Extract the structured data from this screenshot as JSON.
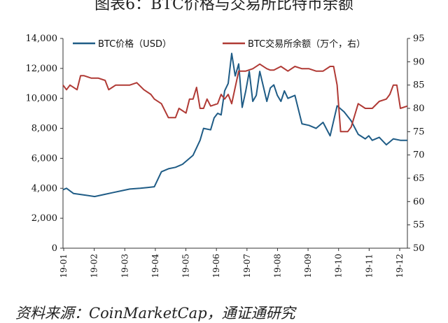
{
  "title": "图表6：BTC价格与交易所比特币余额",
  "source": "资料来源：CoinMarketCap，通证通研究",
  "chart_data": {
    "type": "line",
    "title": "图表6：BTC价格与交易所比特币余额",
    "x_tick_labels": [
      "19-01",
      "19-02",
      "19-03",
      "19-04",
      "19-05",
      "19-06",
      "19-07",
      "19-08",
      "19-09",
      "19-10",
      "19-11",
      "19-12"
    ],
    "x_range": [
      2019.0,
      2019.98
    ],
    "y_left": {
      "range": [
        0,
        14000
      ],
      "tick_labels": [
        "0",
        "2,000",
        "4,000",
        "6,000",
        "8,000",
        "10,000",
        "12,000",
        "14,000"
      ]
    },
    "y_right": {
      "range": [
        50,
        95
      ],
      "tick_labels": [
        "50",
        "55",
        "60",
        "65",
        "70",
        "75",
        "80",
        "85",
        "90",
        "95"
      ]
    },
    "grid": false,
    "legend_position": "top",
    "series": [
      {
        "name": "BTC价格（USD）",
        "axis": "left",
        "color": "#1f5c86",
        "x": [
          2019.0,
          2019.01,
          2019.03,
          2019.06,
          2019.09,
          2019.12,
          2019.14,
          2019.17,
          2019.19,
          2019.22,
          2019.24,
          2019.26,
          2019.28,
          2019.3,
          2019.32,
          2019.34,
          2019.35,
          2019.37,
          2019.39,
          2019.4,
          2019.42,
          2019.43,
          2019.44,
          2019.45,
          2019.46,
          2019.47,
          2019.48,
          2019.49,
          2019.5,
          2019.51,
          2019.52,
          2019.53,
          2019.54,
          2019.55,
          2019.56,
          2019.57,
          2019.58,
          2019.59,
          2019.6,
          2019.61,
          2019.62,
          2019.63,
          2019.64,
          2019.66,
          2019.68,
          2019.7,
          2019.72,
          2019.74,
          2019.76,
          2019.78,
          2019.8,
          2019.82,
          2019.84,
          2019.86,
          2019.87,
          2019.88,
          2019.9,
          2019.92,
          2019.94,
          2019.96,
          2019.98
        ],
        "y": [
          3900,
          4000,
          3650,
          3550,
          3450,
          3600,
          3700,
          3850,
          3950,
          4000,
          4050,
          4100,
          5100,
          5300,
          5400,
          5600,
          5800,
          6200,
          7200,
          8000,
          7900,
          8700,
          9000,
          8900,
          10500,
          11000,
          13000,
          11500,
          12300,
          9400,
          10500,
          11800,
          9800,
          10200,
          11800,
          10800,
          9800,
          10700,
          10900,
          10200,
          9800,
          10500,
          10000,
          10200,
          8300,
          8200,
          8000,
          8400,
          7500,
          9500,
          9100,
          8500,
          7600,
          7300,
          7500,
          7200,
          7400,
          6900,
          7300,
          7200,
          7200
        ]
      },
      {
        "name": "BTC交易所余额（万个，右）",
        "axis": "right",
        "color": "#b03a35",
        "x": [
          2019.0,
          2019.01,
          2019.02,
          2019.04,
          2019.05,
          2019.06,
          2019.08,
          2019.1,
          2019.12,
          2019.13,
          2019.14,
          2019.15,
          2019.17,
          2019.19,
          2019.21,
          2019.23,
          2019.25,
          2019.26,
          2019.28,
          2019.3,
          2019.32,
          2019.33,
          2019.35,
          2019.36,
          2019.37,
          2019.38,
          2019.39,
          2019.4,
          2019.41,
          2019.42,
          2019.44,
          2019.45,
          2019.46,
          2019.47,
          2019.48,
          2019.5,
          2019.52,
          2019.54,
          2019.56,
          2019.58,
          2019.59,
          2019.6,
          2019.62,
          2019.64,
          2019.66,
          2019.68,
          2019.7,
          2019.72,
          2019.74,
          2019.76,
          2019.77,
          2019.78,
          2019.79,
          2019.8,
          2019.81,
          2019.82,
          2019.84,
          2019.86,
          2019.88,
          2019.9,
          2019.92,
          2019.93,
          2019.94,
          2019.95,
          2019.96,
          2019.98
        ],
        "y": [
          85,
          84,
          85,
          84,
          87,
          87,
          86.5,
          86.5,
          86,
          84,
          84.5,
          85,
          85,
          85,
          85.5,
          84,
          83,
          82,
          81,
          78,
          78,
          80,
          79,
          82,
          82,
          84.5,
          80,
          80,
          82,
          80.5,
          81,
          83,
          82,
          83,
          81,
          88,
          88,
          88.5,
          89.5,
          88.5,
          88.2,
          88.2,
          89,
          88,
          89,
          88.5,
          88.5,
          88,
          88,
          89,
          89,
          85,
          75,
          75,
          75,
          76,
          81,
          80,
          80,
          81.5,
          82,
          83,
          85,
          85,
          80,
          80.5
        ]
      }
    ]
  }
}
